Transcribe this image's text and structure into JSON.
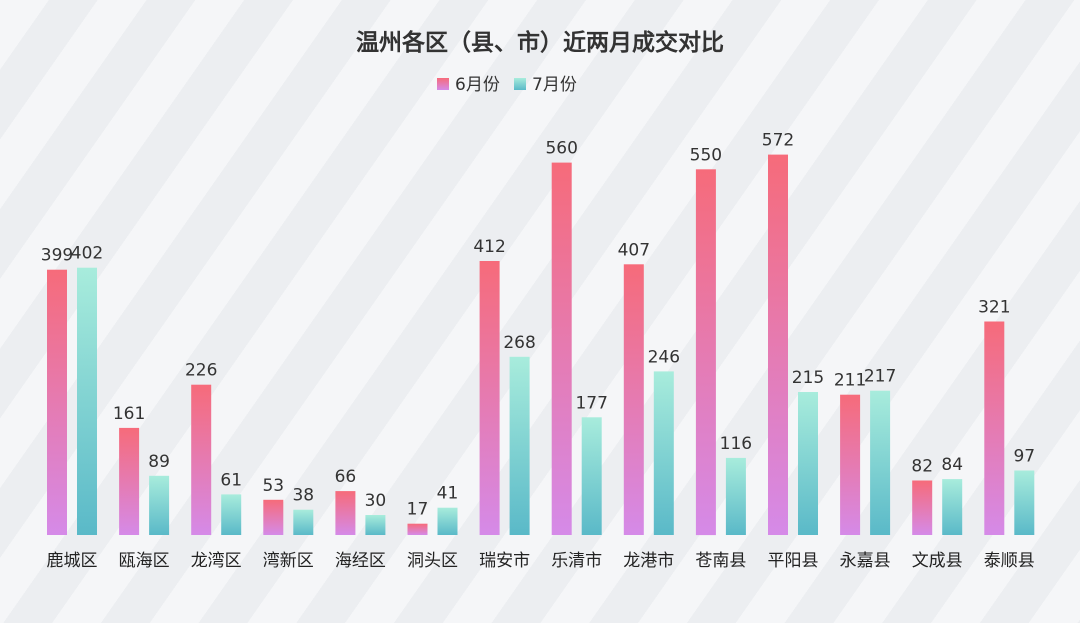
{
  "chart_data": {
    "type": "bar",
    "title": "温州各区（县、市）近两月成交对比",
    "xlabel": "",
    "ylabel": "",
    "ylim": [
      0,
      600
    ],
    "grid": false,
    "legend_position": "top-center",
    "categories": [
      "鹿城区",
      "瓯海区",
      "龙湾区",
      "湾新区",
      "海经区",
      "洞头区",
      "瑞安市",
      "乐清市",
      "龙港市",
      "苍南县",
      "平阳县",
      "永嘉县",
      "文成县",
      "泰顺县"
    ],
    "series": [
      {
        "name": "6月份",
        "values": [
          399,
          161,
          226,
          53,
          66,
          17,
          412,
          560,
          407,
          550,
          572,
          211,
          82,
          321
        ],
        "color_top": "#f66b7a",
        "color_bottom": "#d58ae8"
      },
      {
        "name": "7月份",
        "values": [
          402,
          89,
          61,
          38,
          30,
          41,
          268,
          177,
          246,
          116,
          215,
          217,
          84,
          97
        ],
        "color_top": "#a8ecdc",
        "color_bottom": "#5ab9c8"
      }
    ]
  }
}
